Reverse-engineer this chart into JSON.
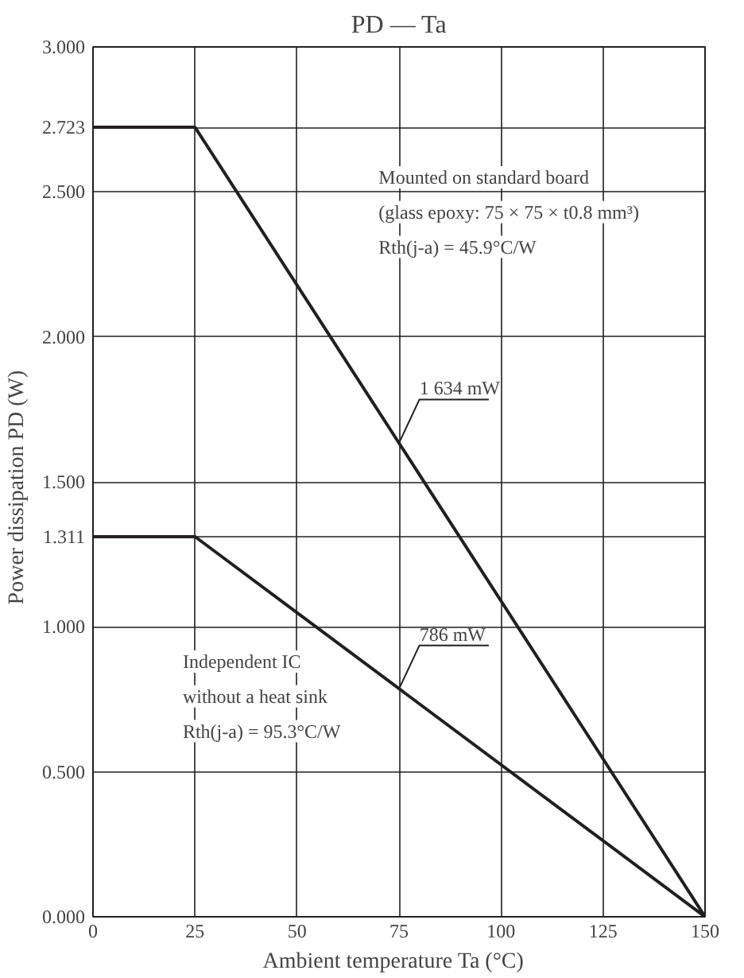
{
  "chart_data": {
    "type": "line",
    "title": "PD — Ta",
    "xlabel": "Ambient temperature  Ta  (°C)",
    "ylabel": "Power dissipation  PD  (W)",
    "xlim": [
      0,
      150
    ],
    "xticks": [
      0,
      25,
      50,
      75,
      100,
      125,
      150
    ],
    "ylim": [
      0,
      3
    ],
    "yticks": [
      {
        "value": 0,
        "label": "0.000"
      },
      {
        "value": 0.5,
        "label": "0.500"
      },
      {
        "value": 1,
        "label": "1.000"
      },
      {
        "value": 1.311,
        "label": "1.311"
      },
      {
        "value": 1.5,
        "label": "1.500"
      },
      {
        "value": 2,
        "label": "2.000"
      },
      {
        "value": 2.5,
        "label": "2.500"
      },
      {
        "value": 2.723,
        "label": "2.723"
      },
      {
        "value": 3,
        "label": "3.000"
      }
    ],
    "grid": true,
    "series": [
      {
        "color": "#231f20",
        "x": [
          0,
          25,
          150
        ],
        "values": [
          2.723,
          2.723,
          0
        ]
      },
      {
        "color": "#231f20",
        "x": [
          0,
          25,
          150
        ],
        "values": [
          1.311,
          1.311,
          0
        ]
      }
    ],
    "annotations": [
      "Mounted on standard board",
      "(glass epoxy: 75 × 75 × t0.8 mm³)",
      "Rth(j-a) = 45.9°C/W",
      "Independent IC",
      "without a heat sink",
      "Rth(j-a) = 95.3°C/W",
      {
        "text": "1 634 mW",
        "x": 75,
        "y": 1.634
      },
      {
        "text": "786 mW",
        "x": 75,
        "y": 0.786
      }
    ]
  }
}
